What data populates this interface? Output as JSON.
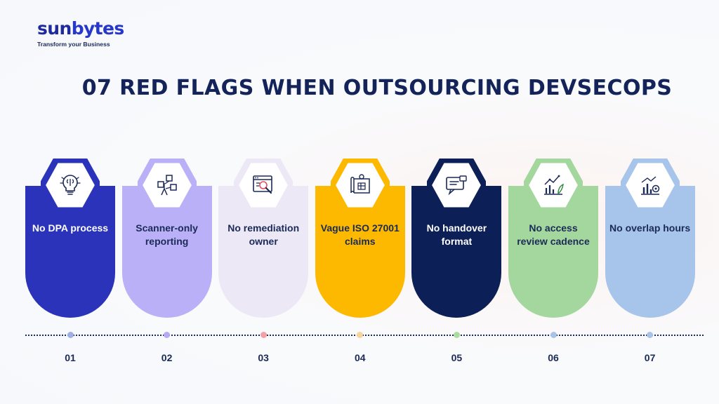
{
  "logo": {
    "word_part1": "sun",
    "word_part2": "bytes",
    "tagline": "Transform your Business"
  },
  "title": "07 RED FLAGS WHEN OUTSOURCING DEVSECOPS",
  "flags": [
    {
      "label": "No DPA process",
      "number": "01",
      "card_color": "#2a33b9",
      "text_color": "#ffffff",
      "dot_color": "#9db0e6",
      "icon": "lightbulb-brain-icon"
    },
    {
      "label": "Scanner-only reporting",
      "number": "02",
      "card_color": "#b9b0f8",
      "text_color": "#1b2a57",
      "dot_color": "#b7a9f2",
      "icon": "network-blocks-icon"
    },
    {
      "label": "No remediation owner",
      "number": "03",
      "card_color": "#ece8f6",
      "text_color": "#1b2a57",
      "dot_color": "#f3a0a8",
      "icon": "browser-magnifier-icon"
    },
    {
      "label": "Vague ISO 27001 claims",
      "number": "04",
      "card_color": "#fdb800",
      "text_color": "#1b2a57",
      "dot_color": "#f7d49a",
      "icon": "blueprint-scroll-icon"
    },
    {
      "label": "No handover format",
      "number": "05",
      "card_color": "#0d1f57",
      "text_color": "#ffffff",
      "dot_color": "#a9dca0",
      "icon": "chat-feedback-icon"
    },
    {
      "label": "No access review cadence",
      "number": "06",
      "card_color": "#a4d79d",
      "text_color": "#1b2a57",
      "dot_color": "#a8c2ea",
      "icon": "growth-chart-icon"
    },
    {
      "label": "No overlap hours",
      "number": "07",
      "card_color": "#a7c5ea",
      "text_color": "#1b2a57",
      "dot_color": "#a8c2ea",
      "icon": "bar-chart-gear-icon"
    }
  ]
}
